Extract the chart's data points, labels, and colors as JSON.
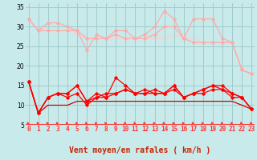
{
  "xlabel": "Vent moyen/en rafales ( km/h )",
  "ylim": [
    5,
    36
  ],
  "xlim": [
    -0.3,
    23.3
  ],
  "yticks": [
    5,
    10,
    15,
    20,
    25,
    30,
    35
  ],
  "xticks": [
    0,
    1,
    2,
    3,
    4,
    5,
    6,
    7,
    8,
    9,
    10,
    11,
    12,
    13,
    14,
    15,
    16,
    17,
    18,
    19,
    20,
    21,
    22,
    23
  ],
  "bg_color": "#c8eaea",
  "grid_color": "#a0cccc",
  "arrow_color": "#ff3333",
  "tick_color": "#ff3333",
  "xlabel_color": "#cc2200",
  "series": [
    {
      "y": [
        32,
        29,
        31,
        31,
        30,
        29,
        24,
        28,
        27,
        29,
        29,
        27,
        28,
        30,
        34,
        32,
        27,
        32,
        32,
        32,
        27,
        26,
        19,
        18
      ],
      "color": "#ffaaaa",
      "marker": "D",
      "markersize": 1.8,
      "linewidth": 0.9,
      "zorder": 2
    },
    {
      "y": [
        32,
        29,
        29,
        29,
        29,
        29,
        27,
        27,
        27,
        28,
        27,
        27,
        27,
        28,
        30,
        30,
        27,
        26,
        26,
        26,
        26,
        26,
        19,
        18
      ],
      "color": "#ffaaaa",
      "marker": "D",
      "markersize": 1.8,
      "linewidth": 0.9,
      "zorder": 2
    },
    {
      "y": [
        32,
        29,
        30,
        30,
        30,
        28,
        27,
        27,
        27,
        27,
        27,
        27,
        27,
        27,
        27,
        28,
        27,
        27,
        26,
        26,
        26,
        26,
        19,
        18
      ],
      "color": "#ffcccc",
      "marker": null,
      "markersize": 0,
      "linewidth": 0.9,
      "zorder": 1
    },
    {
      "y": [
        16,
        8,
        12,
        13,
        13,
        15,
        11,
        13,
        12,
        13,
        14,
        13,
        13,
        14,
        13,
        15,
        12,
        13,
        14,
        15,
        15,
        13,
        12,
        9
      ],
      "color": "#ff0000",
      "marker": "D",
      "markersize": 1.8,
      "linewidth": 0.9,
      "zorder": 4
    },
    {
      "y": [
        16,
        8,
        12,
        13,
        13,
        15,
        11,
        12,
        12,
        17,
        15,
        13,
        14,
        13,
        13,
        15,
        12,
        13,
        14,
        15,
        14,
        13,
        12,
        9
      ],
      "color": "#ff0000",
      "marker": "D",
      "markersize": 1.8,
      "linewidth": 0.9,
      "zorder": 4
    },
    {
      "y": [
        16,
        8,
        12,
        13,
        12,
        13,
        10,
        12,
        13,
        13,
        14,
        13,
        13,
        13,
        13,
        14,
        12,
        13,
        13,
        14,
        14,
        12,
        12,
        9
      ],
      "color": "#ff0000",
      "marker": "D",
      "markersize": 1.8,
      "linewidth": 0.9,
      "zorder": 4
    },
    {
      "y": [
        16,
        8,
        10,
        10,
        10,
        11,
        11,
        11,
        11,
        11,
        11,
        11,
        11,
        11,
        11,
        11,
        11,
        11,
        11,
        11,
        11,
        11,
        10,
        9
      ],
      "color": "#cc0000",
      "marker": null,
      "markersize": 0,
      "linewidth": 0.9,
      "zorder": 3
    }
  ],
  "tick_fontsize": 5.5,
  "xlabel_fontsize": 7
}
